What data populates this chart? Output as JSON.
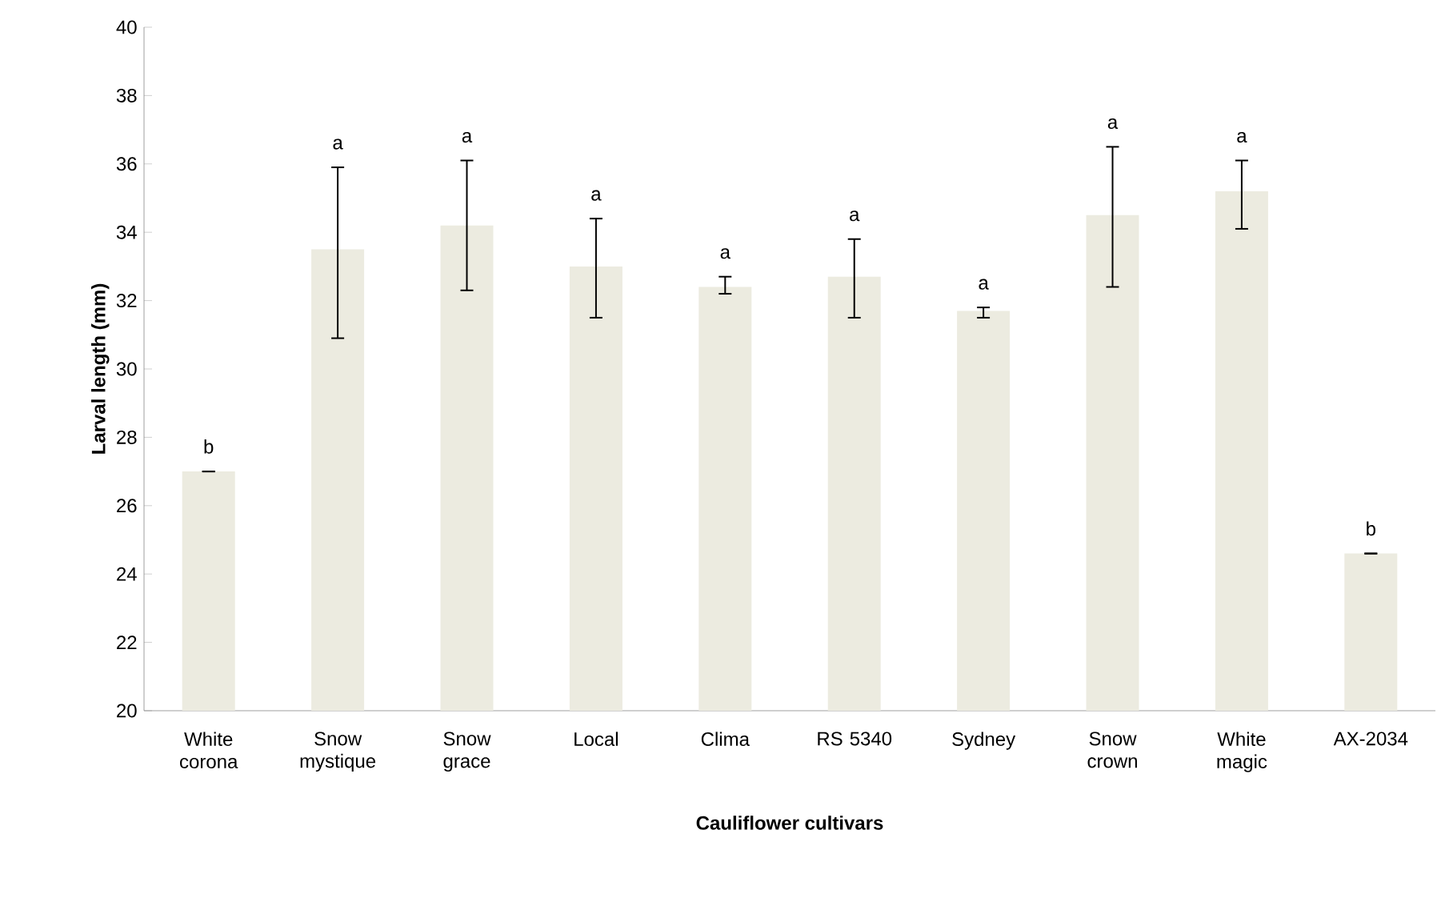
{
  "chart_data": {
    "type": "bar",
    "xlabel": "Cauliflower cultivars",
    "ylabel": "Larval length (mm)",
    "categories": [
      "White corona",
      "Snow mystique",
      "Snow grace",
      "Local",
      "Clima",
      "RS 5340",
      "Sydney",
      "Snow crown",
      "White magic",
      "AX-2034"
    ],
    "values": [
      27.0,
      33.5,
      34.2,
      33.0,
      32.4,
      32.7,
      31.7,
      34.5,
      35.2,
      24.6
    ],
    "errors": [
      [
        27.0,
        27.0
      ],
      [
        30.9,
        35.9
      ],
      [
        32.3,
        36.1
      ],
      [
        31.5,
        34.4
      ],
      [
        32.2,
        32.7
      ],
      [
        31.5,
        33.8
      ],
      [
        31.5,
        31.8
      ],
      [
        32.4,
        36.5
      ],
      [
        34.1,
        36.1
      ],
      [
        24.6,
        24.6
      ]
    ],
    "color": "#ecebe0",
    "ylim": [
      20,
      40
    ],
    "yticks": [
      20,
      22,
      24,
      26,
      28,
      30,
      32,
      34,
      36,
      38,
      40
    ],
    "grid": false,
    "annotations": [
      "b",
      "a",
      "a",
      "a",
      "a",
      "a",
      "a",
      "a",
      "a",
      "b"
    ]
  }
}
